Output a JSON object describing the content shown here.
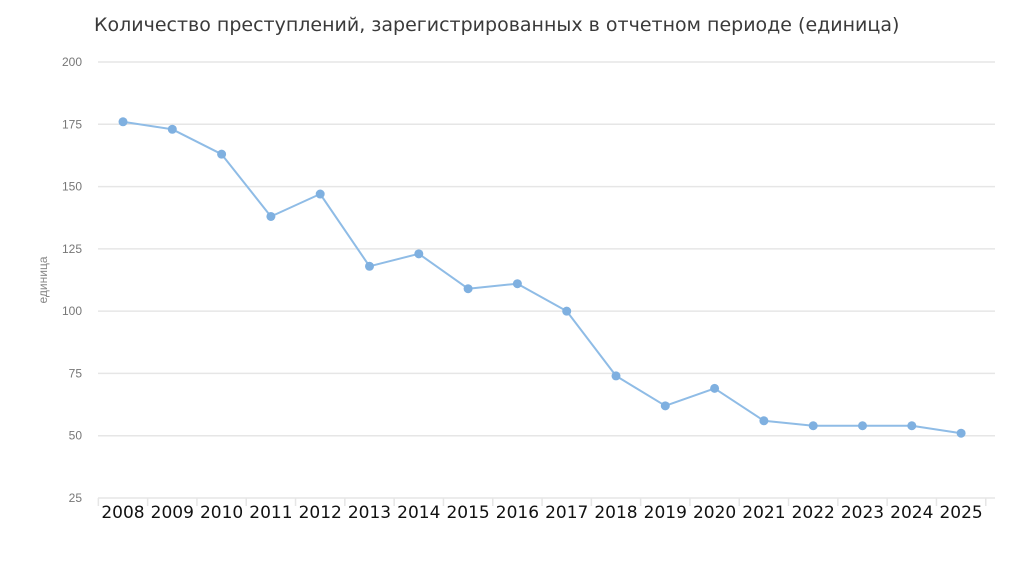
{
  "chart_data": {
    "type": "line",
    "title": "Количество преступлений, зарегистрированных в отчетном периоде (единица)",
    "xlabel": "",
    "ylabel": "единица",
    "categories": [
      "2008",
      "2009",
      "2010",
      "2011",
      "2012",
      "2013",
      "2014",
      "2015",
      "2016",
      "2017",
      "2018",
      "2019",
      "2020",
      "2021",
      "2022",
      "2023",
      "2024",
      "2025"
    ],
    "series": [
      {
        "values": [
          176,
          173,
          163,
          138,
          147,
          118,
          123,
          109,
          111,
          100,
          74,
          62,
          69,
          56,
          54,
          54,
          54,
          51
        ]
      }
    ],
    "ylim": [
      25,
      200
    ],
    "yticks": [
      "25",
      "50",
      "75",
      "100",
      "125",
      "150",
      "175",
      "200"
    ],
    "grid": true,
    "legend": "none",
    "colors": {
      "line": "#8fbce6",
      "marker": "#7fb0e0",
      "grid": "#e6e6e6"
    }
  }
}
